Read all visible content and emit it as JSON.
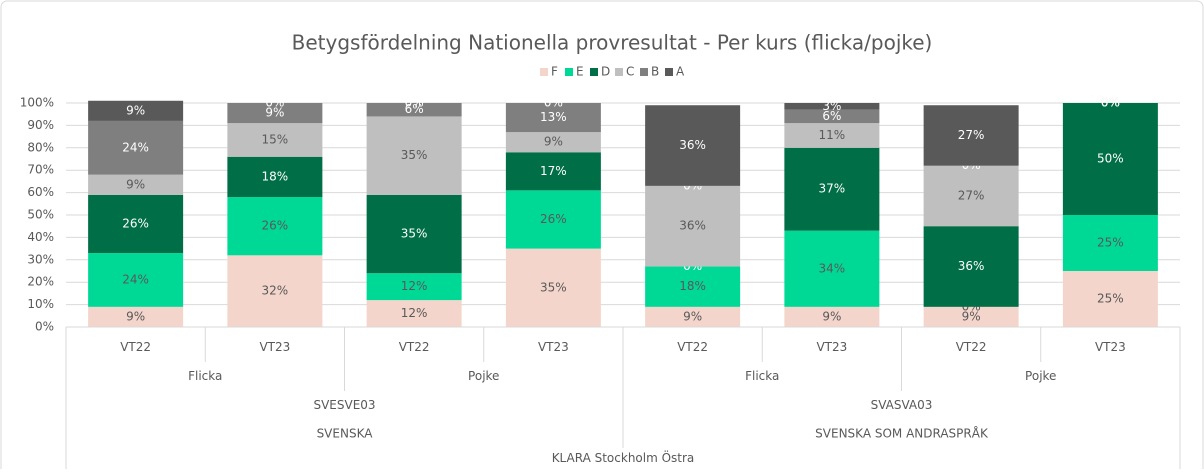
{
  "chart_data": {
    "type": "stacked_bar",
    "title": "Betygsfördelning Nationella provresultat - Per kurs (flicka/pojke)",
    "categories": [
      "VT22",
      "VT23",
      "VT22",
      "VT23",
      "VT22",
      "VT23",
      "VT22",
      "VT23"
    ],
    "category_levels": [
      [
        "Flicka",
        "Pojke",
        "Flicka",
        "Pojke"
      ],
      [
        "SVESVE03",
        "SVASVA03"
      ],
      [
        "SVENSKA",
        "SVENSKA SOM ANDRASPRÅK"
      ],
      [
        "KLARA Stockholm Östra"
      ]
    ],
    "series": [
      {
        "name": "F",
        "color": "#f4d5cb",
        "values": [
          9,
          32,
          12,
          35,
          9,
          9,
          9,
          25
        ],
        "value_labels": [
          "9%",
          "32%",
          "12%",
          "35%",
          "9%",
          "9%",
          "9%",
          "25%"
        ]
      },
      {
        "name": "E",
        "color": "#00d996",
        "values": [
          24,
          26,
          12,
          26,
          18,
          34,
          0,
          25
        ],
        "value_labels": [
          "24%",
          "26%",
          "12%",
          "26%",
          "18%",
          "34%",
          "0%",
          "25%"
        ]
      },
      {
        "name": "D",
        "color": "#006e46",
        "values": [
          26,
          18,
          35,
          17,
          0,
          37,
          36,
          50
        ],
        "value_labels": [
          "26%",
          "18%",
          "35%",
          "17%",
          "0%",
          "37%",
          "36%",
          "50%"
        ]
      },
      {
        "name": "C",
        "color": "#bfbfbf",
        "values": [
          9,
          15,
          35,
          9,
          36,
          11,
          27,
          0
        ],
        "value_labels": [
          "9%",
          "15%",
          "35%",
          "9%",
          "36%",
          "11%",
          "27%",
          "0%"
        ]
      },
      {
        "name": "B",
        "color": "#7f7f7f",
        "values": [
          24,
          9,
          6,
          13,
          0,
          6,
          0,
          0
        ],
        "value_labels": [
          "24%",
          "9%",
          "6%",
          "13%",
          "0%",
          "6%",
          "0%",
          "0%"
        ]
      },
      {
        "name": "A",
        "color": "#595959",
        "values": [
          9,
          0,
          0,
          0,
          36,
          3,
          27,
          0
        ],
        "value_labels": [
          "9%",
          "0%",
          "0%",
          "0%",
          "36%",
          "3%",
          "27%",
          "0%"
        ]
      }
    ],
    "ylim": [
      0,
      100
    ],
    "yticks": [
      {
        "value": 0,
        "label": "0%"
      },
      {
        "value": 10,
        "label": "10%"
      },
      {
        "value": 20,
        "label": "20%"
      },
      {
        "value": 30,
        "label": "30%"
      },
      {
        "value": 40,
        "label": "40%"
      },
      {
        "value": 50,
        "label": "50%"
      },
      {
        "value": 60,
        "label": "60%"
      },
      {
        "value": 70,
        "label": "70%"
      },
      {
        "value": 80,
        "label": "80%"
      },
      {
        "value": 90,
        "label": "90%"
      },
      {
        "value": 100,
        "label": "100%"
      }
    ],
    "grid": true,
    "legend": "top"
  }
}
